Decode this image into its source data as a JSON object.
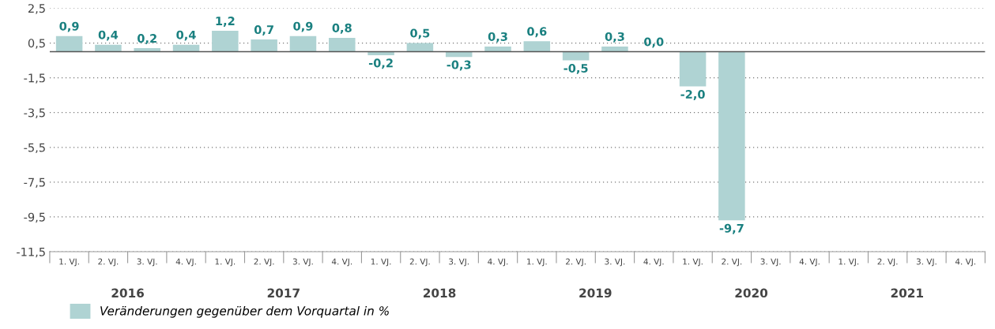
{
  "chart_data": {
    "type": "bar",
    "categories": [
      "1. VJ.",
      "2. VJ.",
      "3. VJ.",
      "4. VJ.",
      "1. VJ.",
      "2. VJ.",
      "3. VJ.",
      "4. VJ.",
      "1. VJ.",
      "2. VJ.",
      "3. VJ.",
      "4. VJ.",
      "1. VJ.",
      "2. VJ.",
      "3. VJ.",
      "4. VJ.",
      "1. VJ.",
      "2. VJ.",
      "3. VJ.",
      "4. VJ.",
      "1. VJ.",
      "2. VJ.",
      "3. VJ.",
      "4. VJ."
    ],
    "series": [
      {
        "name": "Veränderungen gegenüber dem Vorquartal in %",
        "color": "#afd3d3",
        "values": [
          0.9,
          0.4,
          0.2,
          0.4,
          1.2,
          0.7,
          0.9,
          0.8,
          -0.2,
          0.5,
          -0.3,
          0.3,
          0.6,
          -0.5,
          0.3,
          0.0,
          -2.0,
          -9.7,
          null,
          null,
          null,
          null,
          null,
          null
        ],
        "value_labels": [
          "0,9",
          "0,4",
          "0,2",
          "0,4",
          "1,2",
          "0,7",
          "0,9",
          "0,8",
          "-0,2",
          "0,5",
          "-0,3",
          "0,3",
          "0,6",
          "-0,5",
          "0,3",
          "0,0",
          "-2,0",
          "-9,7",
          null,
          null,
          null,
          null,
          null,
          null
        ]
      }
    ],
    "ylim": [
      -11.5,
      2.5
    ],
    "yticks": [
      {
        "value": 2.5,
        "label": "2,5"
      },
      {
        "value": 0.5,
        "label": "0,5"
      },
      {
        "value": -1.5,
        "label": "-1,5"
      },
      {
        "value": -3.5,
        "label": "-3,5"
      },
      {
        "value": -5.5,
        "label": "-5,5"
      },
      {
        "value": -7.5,
        "label": "-7,5"
      },
      {
        "value": -9.5,
        "label": "-9,5"
      },
      {
        "value": -11.5,
        "label": "-11,5"
      }
    ],
    "ref_lines": [
      {
        "axis": "y",
        "value": 0,
        "color": "#555555"
      }
    ],
    "annotations": [
      "2016",
      "2017",
      "2018",
      "2019",
      "2020",
      "2021"
    ],
    "grid": "y",
    "legend": "bottom left"
  }
}
